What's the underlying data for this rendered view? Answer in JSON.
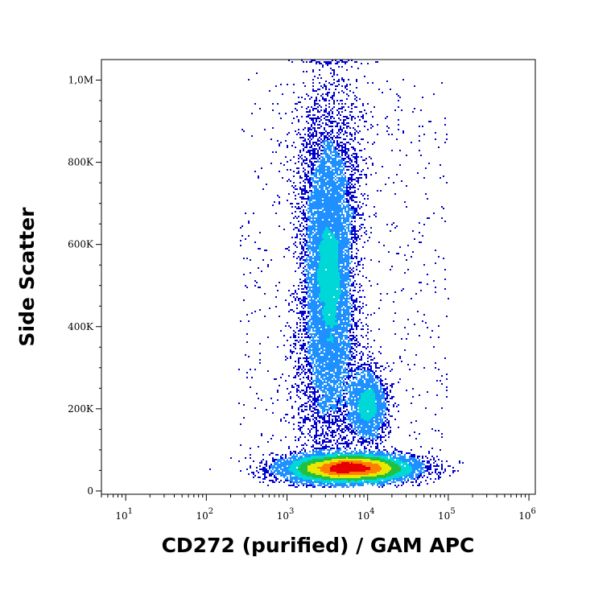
{
  "chart_data": {
    "type": "scatter",
    "subtype": "flow-cytometry-density-dot-plot",
    "xlabel": "CD272 (purified) / GAM APC",
    "ylabel": "Side Scatter",
    "x_scale": "log",
    "xlim": [
      5,
      1200000
    ],
    "ylim": [
      -8000,
      1050000
    ],
    "x_ticks": [
      {
        "value": 10,
        "base": "10",
        "exp": "1"
      },
      {
        "value": 100,
        "base": "10",
        "exp": "2"
      },
      {
        "value": 1000,
        "base": "10",
        "exp": "3"
      },
      {
        "value": 10000,
        "base": "10",
        "exp": "4"
      },
      {
        "value": 100000,
        "base": "10",
        "exp": "5"
      },
      {
        "value": 1000000,
        "base": "10",
        "exp": "6"
      }
    ],
    "y_ticks": [
      {
        "value": 0,
        "label": "0"
      },
      {
        "value": 200000,
        "label": "200K"
      },
      {
        "value": 400000,
        "label": "400K"
      },
      {
        "value": 600000,
        "label": "600K"
      },
      {
        "value": 800000,
        "label": "800K"
      },
      {
        "value": 1000000,
        "label": "1,0M"
      }
    ],
    "color_scale": [
      "#0000cc",
      "#1e90ff",
      "#00d8d8",
      "#20c040",
      "#e8e800",
      "#ff8000",
      "#e60000"
    ],
    "populations": [
      {
        "x_center": 3300,
        "y_center": 520000,
        "x_spread_decades": 0.15,
        "y_spread": 150000,
        "relative_count": 0.42
      },
      {
        "x_center": 10000,
        "y_center": 210000,
        "x_spread_decades": 0.12,
        "y_spread": 45000,
        "relative_count": 0.08
      },
      {
        "x_center": 6000,
        "y_center": 55000,
        "x_spread_decades": 0.38,
        "y_spread": 16000,
        "relative_count": 0.5
      }
    ]
  }
}
